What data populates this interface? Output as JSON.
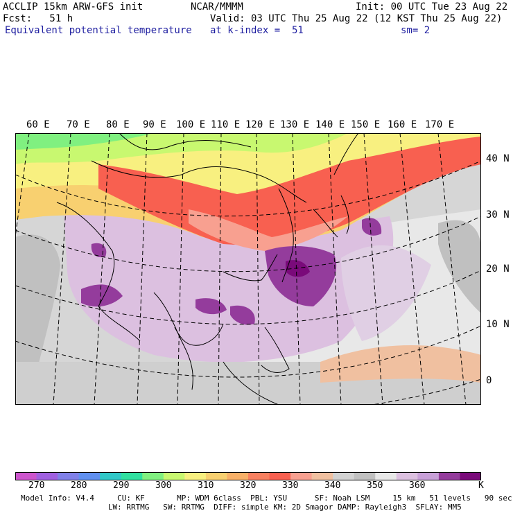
{
  "header": {
    "model": "ACCLIP 15km ARW-GFS init",
    "org": "NCAR/MMMM",
    "init": "Init: 00 UTC Tue 23 Aug 22",
    "fcst": "Fcst:   51 h",
    "valid": "Valid: 03 UTC Thu 25 Aug 22 (12 KST Thu 25 Aug 22)",
    "field": "Equivalent potential temperature",
    "level": "at k-index =  51",
    "smooth": "sm= 2"
  },
  "lon_labels": [
    "60 E",
    "70 E",
    "80 E",
    "90 E",
    "100 E",
    "110 E",
    "120 E",
    "130 E",
    "140 E",
    "150 E",
    "160 E",
    "170 E"
  ],
  "lat_labels": [
    "40 N",
    "30 N",
    "20 N",
    "10 N",
    "0"
  ],
  "colorbar": {
    "colors": [
      "#cc55cc",
      "#a060e0",
      "#8080e8",
      "#6090f0",
      "#30c8c8",
      "#30e0a0",
      "#80f080",
      "#c8f870",
      "#f8f080",
      "#f8d070",
      "#f8b068",
      "#f88060",
      "#f86050",
      "#f8a090",
      "#f0c0a0",
      "#d2d2d2",
      "#c0c0c0",
      "#e8e8e8",
      "#dcc0e0",
      "#c8a0d8",
      "#943c9c",
      "#7a0a7a"
    ],
    "labels": [
      "270",
      "280",
      "290",
      "300",
      "310",
      "320",
      "330",
      "340",
      "350",
      "360",
      "K"
    ]
  },
  "model_info": {
    "line1": "Model Info: V4.4     CU: KF       MP: WDM 6class  PBL: YSU      SF: Noah LSM     15 km   51 levels   90 sec",
    "line2": "                   LW: RRTMG   SW: RRTMG  DIFF: simple KM: 2D Smagor DAMP: Rayleigh3  SFLAY: MM5"
  },
  "map_colors": {
    "cold": "#d0d0d0",
    "warm_band": "#f8b068",
    "hot_band": "#f86050",
    "humid": "#dcc0e0",
    "very_humid": "#943c9c",
    "coast": "#000000"
  }
}
